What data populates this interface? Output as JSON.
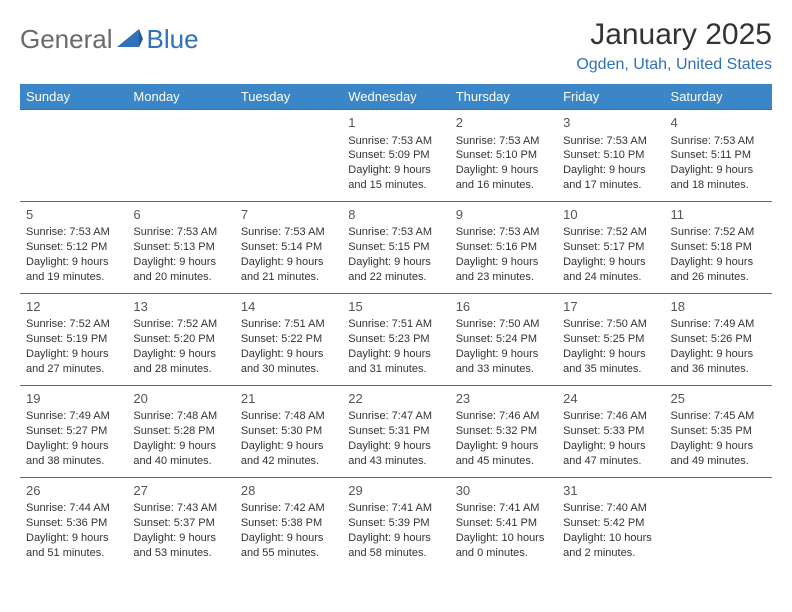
{
  "logo": {
    "general": "General",
    "blue": "Blue"
  },
  "title": "January 2025",
  "location": "Ogden, Utah, United States",
  "colors": {
    "header_bg": "#3b86c6",
    "header_fg": "#ffffff",
    "row_border": "#2f72b8",
    "accent": "#2f72b8",
    "logo_gray": "#6a6a6a",
    "text": "#333333"
  },
  "day_headers": [
    "Sunday",
    "Monday",
    "Tuesday",
    "Wednesday",
    "Thursday",
    "Friday",
    "Saturday"
  ],
  "weeks": [
    [
      {
        "day": "",
        "sunrise": "",
        "sunset": "",
        "daylight": ""
      },
      {
        "day": "",
        "sunrise": "",
        "sunset": "",
        "daylight": ""
      },
      {
        "day": "",
        "sunrise": "",
        "sunset": "",
        "daylight": ""
      },
      {
        "day": "1",
        "sunrise": "Sunrise: 7:53 AM",
        "sunset": "Sunset: 5:09 PM",
        "daylight": "Daylight: 9 hours and 15 minutes."
      },
      {
        "day": "2",
        "sunrise": "Sunrise: 7:53 AM",
        "sunset": "Sunset: 5:10 PM",
        "daylight": "Daylight: 9 hours and 16 minutes."
      },
      {
        "day": "3",
        "sunrise": "Sunrise: 7:53 AM",
        "sunset": "Sunset: 5:10 PM",
        "daylight": "Daylight: 9 hours and 17 minutes."
      },
      {
        "day": "4",
        "sunrise": "Sunrise: 7:53 AM",
        "sunset": "Sunset: 5:11 PM",
        "daylight": "Daylight: 9 hours and 18 minutes."
      }
    ],
    [
      {
        "day": "5",
        "sunrise": "Sunrise: 7:53 AM",
        "sunset": "Sunset: 5:12 PM",
        "daylight": "Daylight: 9 hours and 19 minutes."
      },
      {
        "day": "6",
        "sunrise": "Sunrise: 7:53 AM",
        "sunset": "Sunset: 5:13 PM",
        "daylight": "Daylight: 9 hours and 20 minutes."
      },
      {
        "day": "7",
        "sunrise": "Sunrise: 7:53 AM",
        "sunset": "Sunset: 5:14 PM",
        "daylight": "Daylight: 9 hours and 21 minutes."
      },
      {
        "day": "8",
        "sunrise": "Sunrise: 7:53 AM",
        "sunset": "Sunset: 5:15 PM",
        "daylight": "Daylight: 9 hours and 22 minutes."
      },
      {
        "day": "9",
        "sunrise": "Sunrise: 7:53 AM",
        "sunset": "Sunset: 5:16 PM",
        "daylight": "Daylight: 9 hours and 23 minutes."
      },
      {
        "day": "10",
        "sunrise": "Sunrise: 7:52 AM",
        "sunset": "Sunset: 5:17 PM",
        "daylight": "Daylight: 9 hours and 24 minutes."
      },
      {
        "day": "11",
        "sunrise": "Sunrise: 7:52 AM",
        "sunset": "Sunset: 5:18 PM",
        "daylight": "Daylight: 9 hours and 26 minutes."
      }
    ],
    [
      {
        "day": "12",
        "sunrise": "Sunrise: 7:52 AM",
        "sunset": "Sunset: 5:19 PM",
        "daylight": "Daylight: 9 hours and 27 minutes."
      },
      {
        "day": "13",
        "sunrise": "Sunrise: 7:52 AM",
        "sunset": "Sunset: 5:20 PM",
        "daylight": "Daylight: 9 hours and 28 minutes."
      },
      {
        "day": "14",
        "sunrise": "Sunrise: 7:51 AM",
        "sunset": "Sunset: 5:22 PM",
        "daylight": "Daylight: 9 hours and 30 minutes."
      },
      {
        "day": "15",
        "sunrise": "Sunrise: 7:51 AM",
        "sunset": "Sunset: 5:23 PM",
        "daylight": "Daylight: 9 hours and 31 minutes."
      },
      {
        "day": "16",
        "sunrise": "Sunrise: 7:50 AM",
        "sunset": "Sunset: 5:24 PM",
        "daylight": "Daylight: 9 hours and 33 minutes."
      },
      {
        "day": "17",
        "sunrise": "Sunrise: 7:50 AM",
        "sunset": "Sunset: 5:25 PM",
        "daylight": "Daylight: 9 hours and 35 minutes."
      },
      {
        "day": "18",
        "sunrise": "Sunrise: 7:49 AM",
        "sunset": "Sunset: 5:26 PM",
        "daylight": "Daylight: 9 hours and 36 minutes."
      }
    ],
    [
      {
        "day": "19",
        "sunrise": "Sunrise: 7:49 AM",
        "sunset": "Sunset: 5:27 PM",
        "daylight": "Daylight: 9 hours and 38 minutes."
      },
      {
        "day": "20",
        "sunrise": "Sunrise: 7:48 AM",
        "sunset": "Sunset: 5:28 PM",
        "daylight": "Daylight: 9 hours and 40 minutes."
      },
      {
        "day": "21",
        "sunrise": "Sunrise: 7:48 AM",
        "sunset": "Sunset: 5:30 PM",
        "daylight": "Daylight: 9 hours and 42 minutes."
      },
      {
        "day": "22",
        "sunrise": "Sunrise: 7:47 AM",
        "sunset": "Sunset: 5:31 PM",
        "daylight": "Daylight: 9 hours and 43 minutes."
      },
      {
        "day": "23",
        "sunrise": "Sunrise: 7:46 AM",
        "sunset": "Sunset: 5:32 PM",
        "daylight": "Daylight: 9 hours and 45 minutes."
      },
      {
        "day": "24",
        "sunrise": "Sunrise: 7:46 AM",
        "sunset": "Sunset: 5:33 PM",
        "daylight": "Daylight: 9 hours and 47 minutes."
      },
      {
        "day": "25",
        "sunrise": "Sunrise: 7:45 AM",
        "sunset": "Sunset: 5:35 PM",
        "daylight": "Daylight: 9 hours and 49 minutes."
      }
    ],
    [
      {
        "day": "26",
        "sunrise": "Sunrise: 7:44 AM",
        "sunset": "Sunset: 5:36 PM",
        "daylight": "Daylight: 9 hours and 51 minutes."
      },
      {
        "day": "27",
        "sunrise": "Sunrise: 7:43 AM",
        "sunset": "Sunset: 5:37 PM",
        "daylight": "Daylight: 9 hours and 53 minutes."
      },
      {
        "day": "28",
        "sunrise": "Sunrise: 7:42 AM",
        "sunset": "Sunset: 5:38 PM",
        "daylight": "Daylight: 9 hours and 55 minutes."
      },
      {
        "day": "29",
        "sunrise": "Sunrise: 7:41 AM",
        "sunset": "Sunset: 5:39 PM",
        "daylight": "Daylight: 9 hours and 58 minutes."
      },
      {
        "day": "30",
        "sunrise": "Sunrise: 7:41 AM",
        "sunset": "Sunset: 5:41 PM",
        "daylight": "Daylight: 10 hours and 0 minutes."
      },
      {
        "day": "31",
        "sunrise": "Sunrise: 7:40 AM",
        "sunset": "Sunset: 5:42 PM",
        "daylight": "Daylight: 10 hours and 2 minutes."
      },
      {
        "day": "",
        "sunrise": "",
        "sunset": "",
        "daylight": ""
      }
    ]
  ]
}
